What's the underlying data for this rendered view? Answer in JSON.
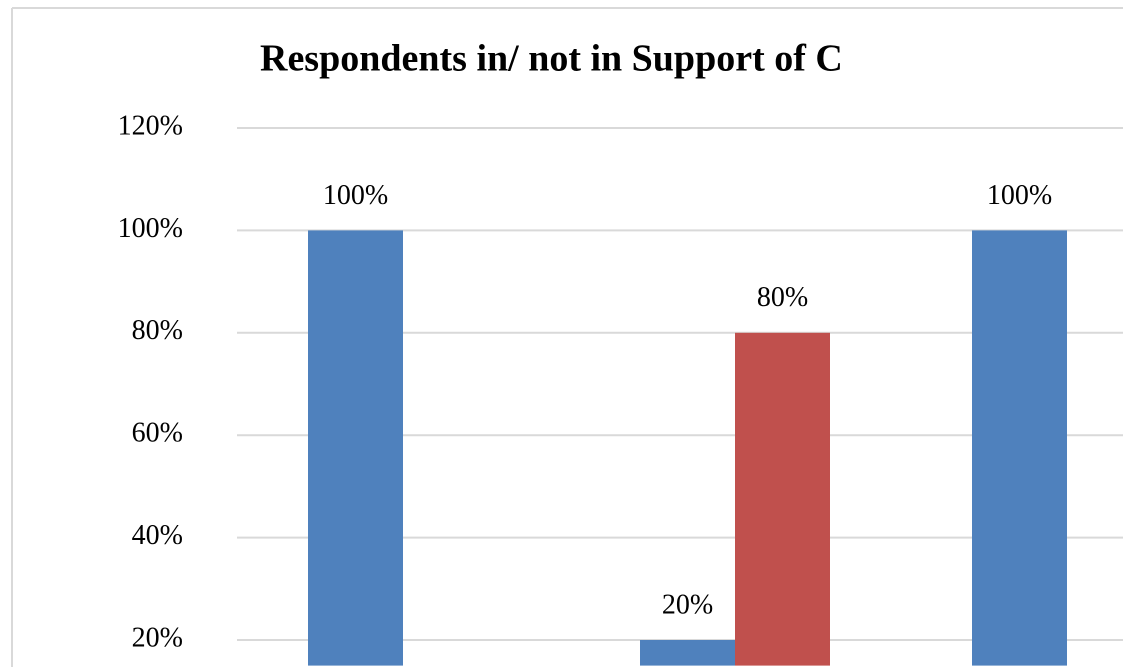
{
  "chart_data": {
    "type": "bar",
    "title": "Respondents in/ not in Support of C",
    "categories": [
      null,
      null,
      null
    ],
    "series": [
      {
        "color": "#4f81bd",
        "values": [
          100,
          20,
          100
        ],
        "value_labels": [
          "100%",
          "20%",
          "100%"
        ]
      },
      {
        "color": "#c0504d",
        "values": [
          null,
          80,
          null
        ],
        "value_labels": [
          null,
          "80%",
          null
        ]
      }
    ],
    "ylim": [
      15,
      120
    ],
    "yticks": [
      {
        "value": 20,
        "label": "20%"
      },
      {
        "value": 40,
        "label": "40%"
      },
      {
        "value": 60,
        "label": "60%"
      },
      {
        "value": 80,
        "label": "80%"
      },
      {
        "value": 100,
        "label": "100%"
      },
      {
        "value": 120,
        "label": "120%"
      }
    ],
    "grid": true
  }
}
